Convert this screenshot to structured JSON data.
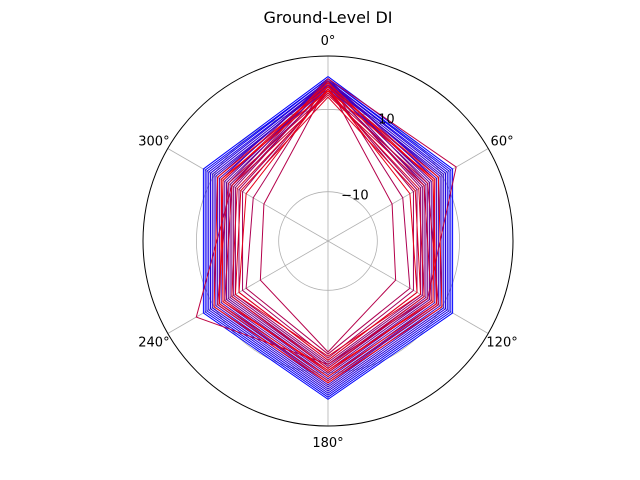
{
  "chart_data": {
    "type": "line",
    "subtype": "polar",
    "title": "Ground-Level DI",
    "theta_unit": "degrees",
    "theta_direction": "clockwise",
    "theta_zero": "top",
    "theta_ticks": [
      0,
      60,
      120,
      180,
      240,
      300
    ],
    "theta_tick_labels": [
      "0°",
      "60°",
      "120°",
      "180°",
      "240°",
      "300°"
    ],
    "r_ticks": [
      -10,
      10
    ],
    "r_tick_labels": [
      "−10",
      "10"
    ],
    "r_tick_label_angle_deg": 22.5,
    "rlim": [
      -22,
      23
    ],
    "grid": true,
    "legend": "none",
    "color_gradient": [
      "#0000ff",
      "#ff0000"
    ],
    "theta": [
      0,
      60,
      120,
      180,
      240,
      300
    ],
    "series": [
      {
        "r": [
          18.0,
          13.0,
          13.0,
          16.5,
          13.0,
          13.0
        ]
      },
      {
        "r": [
          17.5,
          12.5,
          12.5,
          16.0,
          12.5,
          12.5
        ]
      },
      {
        "r": [
          17.5,
          12.0,
          12.0,
          15.5,
          12.0,
          12.0
        ]
      },
      {
        "r": [
          17.0,
          11.5,
          11.5,
          15.0,
          11.5,
          11.5
        ]
      },
      {
        "r": [
          17.0,
          11.0,
          11.0,
          14.5,
          11.0,
          11.0
        ]
      },
      {
        "r": [
          16.5,
          10.5,
          10.5,
          14.0,
          10.5,
          10.5
        ]
      },
      {
        "r": [
          16.0,
          10.0,
          10.0,
          13.5,
          10.0,
          10.0
        ]
      },
      {
        "r": [
          16.5,
          9.5,
          9.5,
          13.0,
          9.5,
          9.5
        ]
      },
      {
        "r": [
          17.0,
          9.0,
          9.0,
          12.5,
          9.0,
          9.0
        ]
      },
      {
        "r": [
          16.0,
          8.5,
          8.5,
          12.0,
          8.5,
          8.5
        ]
      },
      {
        "r": [
          17.5,
          8.0,
          8.0,
          11.5,
          8.0,
          8.0
        ]
      },
      {
        "r": [
          15.5,
          7.5,
          7.5,
          11.0,
          7.5,
          7.5
        ]
      },
      {
        "r": [
          16.5,
          7.0,
          7.0,
          10.5,
          7.0,
          7.0
        ]
      },
      {
        "r": [
          16.0,
          6.5,
          6.5,
          10.0,
          6.5,
          6.5
        ]
      },
      {
        "r": [
          17.0,
          6.0,
          6.0,
          9.5,
          6.0,
          6.0
        ]
      },
      {
        "r": [
          15.0,
          5.5,
          5.5,
          9.0,
          5.5,
          5.5
        ]
      },
      {
        "r": [
          16.5,
          5.0,
          5.0,
          8.5,
          5.0,
          5.0
        ]
      },
      {
        "r": [
          15.5,
          4.5,
          4.5,
          8.0,
          4.5,
          4.5
        ]
      },
      {
        "r": [
          16.0,
          4.0,
          4.0,
          7.5,
          4.0,
          4.0
        ]
      },
      {
        "r": [
          14.5,
          3.0,
          3.0,
          7.0,
          3.0,
          3.0
        ]
      },
      {
        "r": [
          15.0,
          2.0,
          2.0,
          6.5,
          2.0,
          2.0
        ]
      },
      {
        "r": [
          17.0,
          -1.0,
          1.0,
          5.5,
          1.0,
          -1.0
        ]
      },
      {
        "r": [
          16.0,
          -4.0,
          -3.0,
          5.0,
          -3.0,
          -4.0
        ]
      },
      {
        "r": [
          17.5,
          14.0,
          6.0,
          8.0,
          15.0,
          5.0
        ]
      },
      {
        "r": [
          14.0,
          6.0,
          9.0,
          12.0,
          9.0,
          6.0
        ]
      },
      {
        "r": [
          13.5,
          5.0,
          7.0,
          10.0,
          7.0,
          5.0
        ]
      },
      {
        "r": [
          14.0,
          3.5,
          5.0,
          9.0,
          5.0,
          3.5
        ]
      },
      {
        "r": [
          13.0,
          2.5,
          4.0,
          6.0,
          4.0,
          2.5
        ]
      },
      {
        "r": [
          15.0,
          1.0,
          3.0,
          7.0,
          3.0,
          1.0
        ]
      },
      {
        "r": [
          16.5,
          7.5,
          8.5,
          11.0,
          8.5,
          7.5
        ]
      },
      {
        "r": [
          15.5,
          9.0,
          10.0,
          12.5,
          10.0,
          9.0
        ]
      },
      {
        "r": [
          14.5,
          8.0,
          7.5,
          9.5,
          7.5,
          8.0
        ]
      }
    ]
  }
}
